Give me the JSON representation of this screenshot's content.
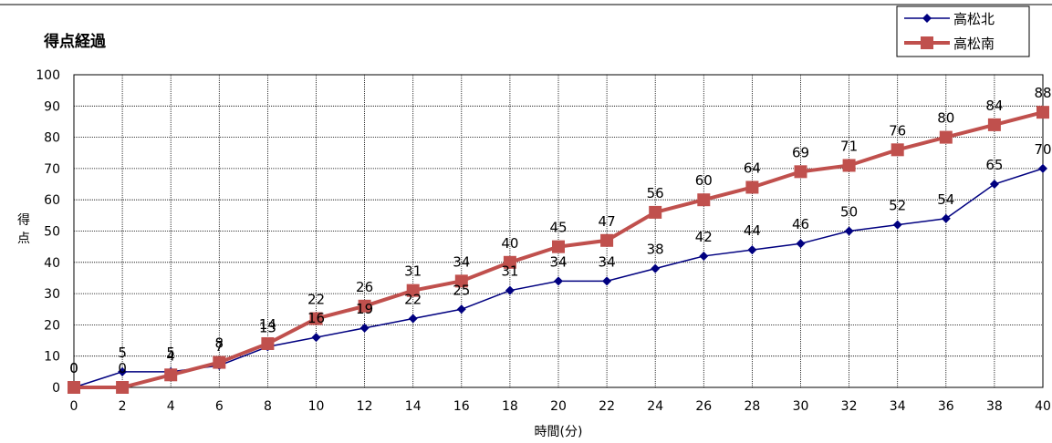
{
  "chart_data": {
    "type": "line",
    "title": "得点経過",
    "xlabel": "時間(分)",
    "ylabel": "得点",
    "x": [
      0,
      2,
      4,
      6,
      8,
      10,
      12,
      14,
      16,
      18,
      20,
      22,
      24,
      26,
      28,
      30,
      32,
      34,
      36,
      38,
      40
    ],
    "xlim": [
      0,
      40
    ],
    "ylim": [
      0,
      100
    ],
    "y_ticks": [
      0,
      10,
      20,
      30,
      40,
      50,
      60,
      70,
      80,
      90,
      100
    ],
    "grid": true,
    "legend_position": "top-right",
    "series": [
      {
        "name": "高松北",
        "color": "#000080",
        "marker": "diamond",
        "values": [
          0,
          5,
          5,
          7,
          13,
          16,
          19,
          22,
          25,
          31,
          34,
          34,
          38,
          42,
          44,
          46,
          50,
          52,
          54,
          65,
          70
        ]
      },
      {
        "name": "高松南",
        "color": "#C0504D",
        "marker": "square",
        "values": [
          0,
          0,
          4,
          8,
          14,
          22,
          26,
          31,
          34,
          40,
          45,
          47,
          56,
          60,
          64,
          69,
          71,
          76,
          80,
          84,
          88
        ]
      }
    ]
  }
}
